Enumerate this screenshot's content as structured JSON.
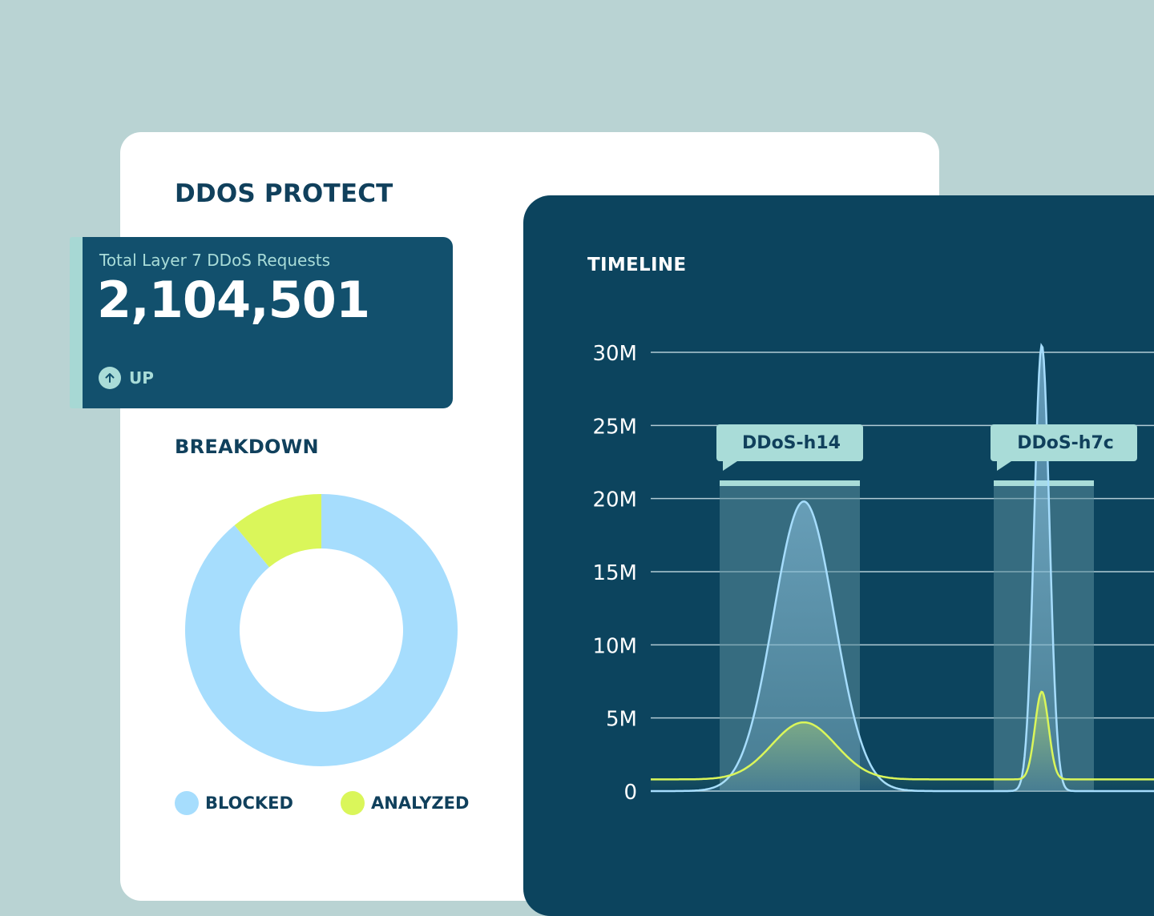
{
  "page_title": "DDOS PROTECT",
  "stat": {
    "label": "Total Layer 7 DDoS Requests",
    "value": "2,104,501",
    "trend_label": "UP",
    "trend_icon": "arrow-up-icon"
  },
  "breakdown": {
    "title": "BREAKDOWN",
    "legend": [
      {
        "label": "BLOCKED",
        "color": "#a6ddfd"
      },
      {
        "label": "ANALYZED",
        "color": "#daf65a"
      }
    ]
  },
  "timeline": {
    "title": "TIMELINE",
    "events": [
      {
        "label": "DDoS-h14"
      },
      {
        "label": "DDoS-h7c"
      }
    ]
  },
  "colors": {
    "background": "#b9d3d3",
    "navy": "#0c445e",
    "card_blue": "#12506d",
    "blocked": "#a6ddfd",
    "analyzed": "#daf65a",
    "event_tag": "#a9dcd8"
  },
  "chart_data": [
    {
      "type": "pie",
      "variant": "donut",
      "title": "BREAKDOWN",
      "categories": [
        "BLOCKED",
        "ANALYZED"
      ],
      "values": [
        89,
        11
      ],
      "colors": [
        "#a6ddfd",
        "#daf65a"
      ],
      "legend": "bottom"
    },
    {
      "type": "area",
      "title": "TIMELINE",
      "ylim": [
        0,
        30000000
      ],
      "yticks": [
        0,
        5000000,
        10000000,
        15000000,
        20000000,
        25000000,
        30000000
      ],
      "ytick_labels": [
        "0",
        "5M",
        "10M",
        "15M",
        "20M",
        "25M",
        "30M"
      ],
      "grid": true,
      "series": [
        {
          "color": "#a6ddfd",
          "baseline": 0,
          "peaks": [
            {
              "event": "DDoS-h14",
              "value": 19800000
            },
            {
              "event": "DDoS-h7c",
              "value": 30500000
            }
          ]
        },
        {
          "color": "#daf65a",
          "baseline": 800000,
          "peaks": [
            {
              "event": "DDoS-h14",
              "value": 4700000
            },
            {
              "event": "DDoS-h7c",
              "value": 6800000
            }
          ]
        }
      ],
      "events": [
        "DDoS-h14",
        "DDoS-h7c"
      ]
    }
  ]
}
